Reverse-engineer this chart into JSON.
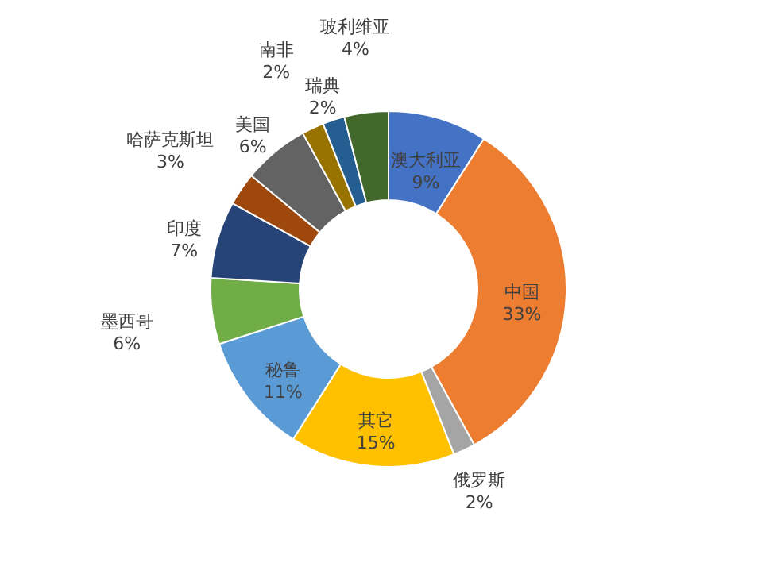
{
  "chart_data": {
    "type": "donut",
    "categories": [
      "澳大利亚",
      "中国",
      "俄罗斯",
      "其它",
      "秘鲁",
      "墨西哥",
      "印度",
      "哈萨克斯坦",
      "美国",
      "南非",
      "瑞典",
      "玻利维亚"
    ],
    "values": [
      9,
      33,
      2,
      15,
      11,
      6,
      7,
      3,
      6,
      2,
      2,
      4
    ],
    "value_labels": [
      "9%",
      "33%",
      "2%",
      "15%",
      "11%",
      "6%",
      "7%",
      "3%",
      "6%",
      "2%",
      "2%",
      "4%"
    ],
    "colors": [
      "#4472c4",
      "#ed7d31",
      "#a5a5a5",
      "#ffc000",
      "#5b9bd5",
      "#70ad47",
      "#264478",
      "#9e480e",
      "#636363",
      "#997300",
      "#255e91",
      "#43682b"
    ],
    "legend": false
  }
}
